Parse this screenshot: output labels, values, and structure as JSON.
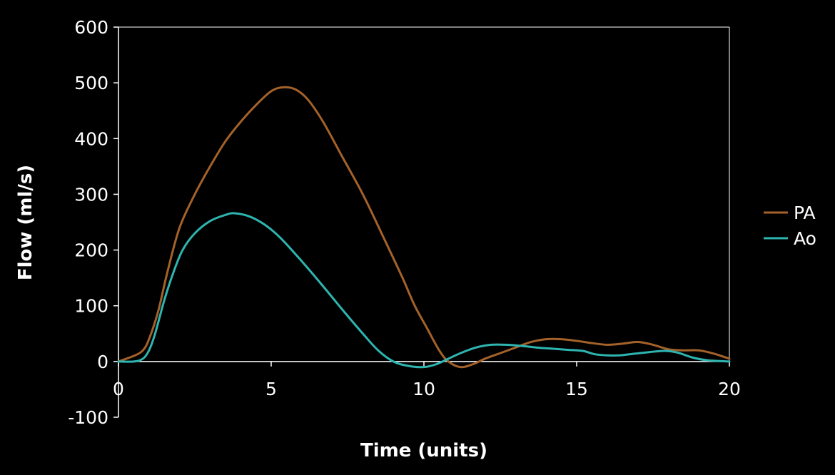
{
  "chart_data": {
    "type": "line",
    "title": "",
    "xlabel": "Time (units)",
    "ylabel": "Flow (ml/s)",
    "xlim": [
      0,
      20
    ],
    "ylim": [
      -100,
      600
    ],
    "xticks": [
      0,
      5,
      10,
      15,
      20
    ],
    "yticks": [
      -100,
      0,
      100,
      200,
      300,
      400,
      500,
      600
    ],
    "grid": false,
    "legend_position": "right",
    "background_color": "#000000",
    "axis_color": "#ffffff",
    "series": [
      {
        "name": "PA",
        "color": "#a4622a",
        "points": [
          [
            0,
            0
          ],
          [
            0.5,
            10
          ],
          [
            0.8,
            20
          ],
          [
            1.0,
            40
          ],
          [
            1.3,
            90
          ],
          [
            1.6,
            160
          ],
          [
            2.0,
            240
          ],
          [
            2.5,
            300
          ],
          [
            3.0,
            350
          ],
          [
            3.5,
            395
          ],
          [
            4.0,
            430
          ],
          [
            4.5,
            460
          ],
          [
            5.0,
            485
          ],
          [
            5.4,
            492
          ],
          [
            5.8,
            488
          ],
          [
            6.2,
            470
          ],
          [
            6.7,
            430
          ],
          [
            7.3,
            370
          ],
          [
            8.0,
            300
          ],
          [
            8.7,
            220
          ],
          [
            9.3,
            150
          ],
          [
            9.7,
            100
          ],
          [
            10.1,
            60
          ],
          [
            10.5,
            20
          ],
          [
            10.8,
            0
          ],
          [
            11.2,
            -10
          ],
          [
            11.6,
            -5
          ],
          [
            12.0,
            5
          ],
          [
            12.5,
            15
          ],
          [
            13.0,
            25
          ],
          [
            13.5,
            35
          ],
          [
            14.0,
            40
          ],
          [
            14.5,
            40
          ],
          [
            15.0,
            37
          ],
          [
            15.5,
            33
          ],
          [
            16.0,
            30
          ],
          [
            16.5,
            32
          ],
          [
            17.0,
            35
          ],
          [
            17.5,
            30
          ],
          [
            18.0,
            22
          ],
          [
            18.5,
            20
          ],
          [
            19.0,
            20
          ],
          [
            19.5,
            14
          ],
          [
            20.0,
            5
          ]
        ]
      },
      {
        "name": "Ao",
        "color": "#2eb5b0",
        "points": [
          [
            0,
            0
          ],
          [
            0.5,
            0
          ],
          [
            0.8,
            5
          ],
          [
            1.0,
            20
          ],
          [
            1.2,
            50
          ],
          [
            1.5,
            110
          ],
          [
            1.8,
            160
          ],
          [
            2.1,
            200
          ],
          [
            2.5,
            230
          ],
          [
            3.0,
            252
          ],
          [
            3.5,
            263
          ],
          [
            3.8,
            266
          ],
          [
            4.3,
            260
          ],
          [
            4.8,
            245
          ],
          [
            5.3,
            222
          ],
          [
            6.0,
            180
          ],
          [
            6.7,
            135
          ],
          [
            7.3,
            95
          ],
          [
            8.0,
            50
          ],
          [
            8.5,
            20
          ],
          [
            9.0,
            0
          ],
          [
            9.5,
            -8
          ],
          [
            10.0,
            -10
          ],
          [
            10.4,
            -5
          ],
          [
            10.8,
            5
          ],
          [
            11.2,
            15
          ],
          [
            11.7,
            25
          ],
          [
            12.2,
            30
          ],
          [
            12.7,
            30
          ],
          [
            13.2,
            28
          ],
          [
            13.7,
            25
          ],
          [
            14.2,
            23
          ],
          [
            14.7,
            21
          ],
          [
            15.2,
            19
          ],
          [
            15.6,
            13
          ],
          [
            16.0,
            11
          ],
          [
            16.4,
            11
          ],
          [
            16.9,
            14
          ],
          [
            17.4,
            17
          ],
          [
            17.9,
            19
          ],
          [
            18.3,
            16
          ],
          [
            18.8,
            7
          ],
          [
            19.3,
            2
          ],
          [
            20.0,
            0
          ]
        ]
      }
    ]
  }
}
